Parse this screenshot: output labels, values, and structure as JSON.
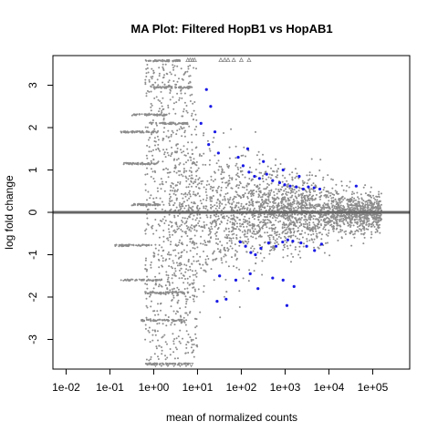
{
  "chart_data": {
    "type": "scatter",
    "title": "MA Plot: Filtered HopB1 vs HopAB1",
    "xlabel": "mean of normalized counts",
    "ylabel": "log fold change",
    "x_scale": "log10",
    "x_tick_labels": [
      "1e-02",
      "1e-01",
      "1e+00",
      "1e+01",
      "1e+02",
      "1e+03",
      "1e+04",
      "1e+05"
    ],
    "x_tick_values": [
      0.01,
      0.1,
      1,
      10,
      100,
      1000,
      10000,
      100000
    ],
    "y_tick_values": [
      -3,
      -2,
      -1,
      0,
      1,
      2,
      3
    ],
    "xlim": [
      0.005,
      700000
    ],
    "ylim": [
      -3.7,
      3.7
    ],
    "zero_line": {
      "y": 0,
      "color": "#666666"
    },
    "grid": false,
    "legend": "none",
    "colors": {
      "not_significant": "#8c8c8c",
      "significant": "#1a1ae6",
      "outside_range": "#8c8c8c"
    },
    "series": [
      {
        "type": "cloud",
        "description_color": "not_significant",
        "x_log10_range": [
          -1.8,
          5.6
        ],
        "y_at_low_counts": 3.6,
        "y_at_high_counts": 0.3
      },
      {
        "type": "significant",
        "points": [
          [
            16,
            2.9
          ],
          [
            20,
            2.5
          ],
          [
            12,
            2.1
          ],
          [
            25,
            1.9
          ],
          [
            18,
            1.6
          ],
          [
            30,
            1.4
          ],
          [
            85,
            1.3
          ],
          [
            110,
            1.1
          ],
          [
            150,
            0.95
          ],
          [
            200,
            0.85
          ],
          [
            260,
            0.8
          ],
          [
            380,
            0.9
          ],
          [
            520,
            0.75
          ],
          [
            750,
            0.7
          ],
          [
            980,
            0.65
          ],
          [
            1300,
            0.62
          ],
          [
            1800,
            0.6
          ],
          [
            2600,
            0.55
          ],
          [
            3400,
            0.6
          ],
          [
            4600,
            0.58
          ],
          [
            6200,
            0.55
          ],
          [
            42000,
            0.62
          ],
          [
            140,
            1.5
          ],
          [
            320,
            1.2
          ],
          [
            900,
            1.0
          ],
          [
            2100,
            0.85
          ],
          [
            95,
            -0.7
          ],
          [
            125,
            -0.8
          ],
          [
            165,
            -0.95
          ],
          [
            210,
            -1.0
          ],
          [
            280,
            -0.85
          ],
          [
            420,
            -0.72
          ],
          [
            620,
            -0.8
          ],
          [
            880,
            -0.7
          ],
          [
            1150,
            -0.65
          ],
          [
            1500,
            -0.68
          ],
          [
            2300,
            -0.72
          ],
          [
            3100,
            -0.8
          ],
          [
            4700,
            -0.9
          ],
          [
            6800,
            -0.75
          ],
          [
            75,
            -1.6
          ],
          [
            160,
            -1.45
          ],
          [
            240,
            -1.8
          ],
          [
            520,
            -1.55
          ],
          [
            900,
            -1.6
          ],
          [
            1600,
            -1.75
          ],
          [
            1100,
            -2.2
          ],
          [
            45,
            -2.05
          ],
          [
            28,
            -2.1
          ],
          [
            32,
            -1.5
          ]
        ]
      },
      {
        "type": "clipped_upper",
        "marker": "triangle-up",
        "x_values": [
          6,
          6.8,
          7.7,
          8.6,
          34,
          42,
          50,
          67,
          100,
          150
        ]
      },
      {
        "type": "clipped_lower",
        "marker": "triangle-down",
        "x_values": [
          1.1,
          1.5,
          2.1,
          2.9,
          4,
          5.5,
          7.2
        ]
      }
    ]
  }
}
